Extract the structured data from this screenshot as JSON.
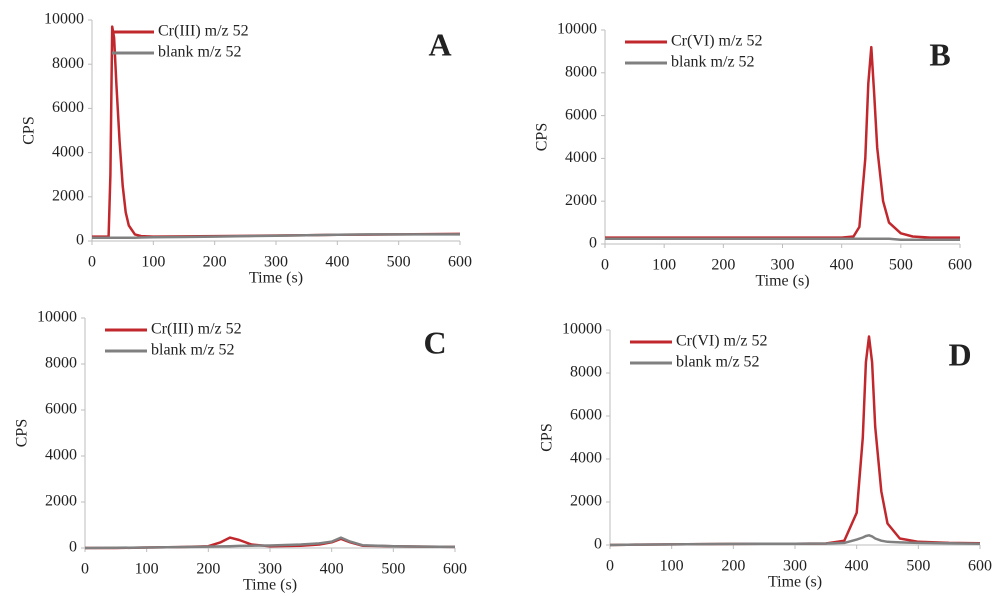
{
  "chart_data": [
    {
      "type": "line",
      "label": "A",
      "xlabel": "Time (s)",
      "ylabel": "CPS",
      "xlim": [
        0,
        600
      ],
      "ylim": [
        0,
        10000
      ],
      "xticks": [
        0,
        100,
        200,
        300,
        400,
        500,
        600
      ],
      "yticks": [
        0,
        2000,
        4000,
        6000,
        8000,
        10000
      ],
      "legend": "upper left",
      "x": [
        0,
        10,
        20,
        27,
        30,
        33,
        36,
        40,
        45,
        50,
        55,
        60,
        70,
        80,
        100,
        150,
        200,
        250,
        300,
        350,
        400,
        450,
        500,
        550,
        600
      ],
      "series": [
        {
          "name": "Cr(III) m/z 52",
          "color": "#c0282d",
          "values": [
            200,
            200,
            200,
            200,
            3000,
            9700,
            9200,
            7000,
            4500,
            2500,
            1300,
            700,
            300,
            220,
            200,
            210,
            220,
            230,
            250,
            260,
            280,
            290,
            300,
            310,
            320
          ]
        },
        {
          "name": "blank m/z 52",
          "color": "#808080",
          "values": [
            150,
            150,
            150,
            150,
            150,
            150,
            150,
            150,
            150,
            150,
            150,
            150,
            150,
            160,
            170,
            180,
            200,
            220,
            240,
            260,
            280,
            300,
            300,
            300,
            300
          ]
        }
      ]
    },
    {
      "type": "line",
      "label": "B",
      "xlabel": "Time (s)",
      "ylabel": "CPS",
      "xlim": [
        0,
        600
      ],
      "ylim": [
        0,
        10000
      ],
      "xticks": [
        0,
        100,
        200,
        300,
        400,
        500,
        600
      ],
      "yticks": [
        0,
        2000,
        4000,
        6000,
        8000,
        10000
      ],
      "legend": "upper left",
      "x": [
        0,
        50,
        100,
        150,
        200,
        250,
        300,
        350,
        400,
        420,
        430,
        440,
        445,
        450,
        455,
        460,
        470,
        480,
        500,
        520,
        550,
        600
      ],
      "series": [
        {
          "name": "Cr(VI) m/z 52",
          "color": "#c0282d",
          "values": [
            300,
            300,
            300,
            300,
            300,
            300,
            300,
            300,
            300,
            350,
            800,
            4000,
            7500,
            9200,
            7000,
            4500,
            2000,
            1000,
            500,
            350,
            300,
            300
          ]
        },
        {
          "name": "blank m/z 52",
          "color": "#808080",
          "values": [
            250,
            250,
            250,
            250,
            250,
            250,
            250,
            250,
            250,
            250,
            250,
            250,
            250,
            250,
            250,
            250,
            250,
            250,
            200,
            200,
            200,
            200
          ]
        }
      ]
    },
    {
      "type": "line",
      "label": "C",
      "xlabel": "Time (s)",
      "ylabel": "CPS",
      "xlim": [
        0,
        600
      ],
      "ylim": [
        0,
        10000
      ],
      "xticks": [
        0,
        100,
        200,
        300,
        400,
        500,
        600
      ],
      "yticks": [
        0,
        2000,
        4000,
        6000,
        8000,
        10000
      ],
      "legend": "upper left",
      "x": [
        0,
        50,
        100,
        150,
        200,
        220,
        235,
        250,
        270,
        300,
        350,
        380,
        400,
        415,
        430,
        450,
        500,
        550,
        600
      ],
      "series": [
        {
          "name": "Cr(III) m/z 52",
          "color": "#c0282d",
          "values": [
            0,
            0,
            20,
            40,
            80,
            250,
            450,
            350,
            150,
            80,
            100,
            150,
            250,
            400,
            250,
            100,
            80,
            60,
            50
          ]
        },
        {
          "name": "blank m/z 52",
          "color": "#808080",
          "values": [
            0,
            10,
            20,
            40,
            60,
            70,
            80,
            90,
            100,
            110,
            150,
            200,
            280,
            450,
            280,
            120,
            80,
            60,
            50
          ]
        }
      ]
    },
    {
      "type": "line",
      "label": "D",
      "xlabel": "Time (s)",
      "ylabel": "CPS",
      "xlim": [
        0,
        600
      ],
      "ylim": [
        0,
        10000
      ],
      "xticks": [
        0,
        100,
        200,
        300,
        400,
        500,
        600
      ],
      "yticks": [
        0,
        2000,
        4000,
        6000,
        8000,
        10000
      ],
      "legend": "upper left",
      "x": [
        0,
        50,
        100,
        150,
        200,
        250,
        300,
        350,
        380,
        400,
        410,
        415,
        420,
        425,
        430,
        440,
        450,
        470,
        500,
        550,
        600
      ],
      "series": [
        {
          "name": "Cr(VI) m/z 52",
          "color": "#c0282d",
          "values": [
            0,
            20,
            30,
            40,
            50,
            60,
            60,
            70,
            200,
            1500,
            5000,
            8500,
            9700,
            8500,
            5500,
            2500,
            1000,
            300,
            150,
            100,
            80
          ]
        },
        {
          "name": "blank m/z 52",
          "color": "#808080",
          "values": [
            0,
            20,
            30,
            40,
            50,
            60,
            60,
            70,
            100,
            250,
            350,
            420,
            450,
            400,
            300,
            200,
            150,
            120,
            100,
            80,
            60
          ]
        }
      ]
    }
  ]
}
